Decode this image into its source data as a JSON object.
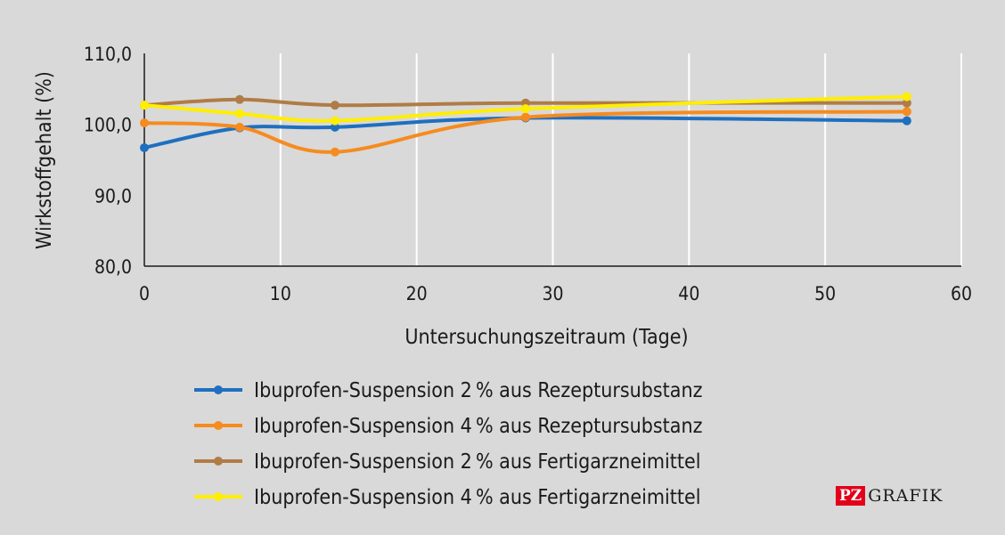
{
  "chart_data": {
    "type": "line",
    "xlabel": "Untersuchungszeitraum (Tage)",
    "ylabel": "Wirkstoffgehalt (%)",
    "xlim": [
      0,
      60
    ],
    "ylim": [
      80,
      110
    ],
    "xticks": [
      "0",
      "10",
      "20",
      "30",
      "40",
      "50",
      "60"
    ],
    "yticks": [
      "80,0",
      "90,0",
      "100,0",
      "110,0"
    ],
    "grid": "vertical",
    "legend": "bottom",
    "x": [
      0,
      7,
      14,
      28,
      56
    ],
    "series": [
      {
        "name": "Ibuprofen-Suspension 2 % aus Rezeptursubstanz",
        "color": "#1f6fbf",
        "values": [
          96.7,
          99.5,
          99.6,
          100.9,
          100.5
        ]
      },
      {
        "name": "Ibuprofen-Suspension 4 % aus Rezeptursubstanz",
        "color": "#f68b1f",
        "values": [
          100.2,
          99.6,
          96.1,
          101.0,
          101.8
        ]
      },
      {
        "name": "Ibuprofen-Suspension 2 % aus Fertigarzneimittel",
        "color": "#b07c46",
        "values": [
          102.7,
          103.5,
          102.7,
          103.0,
          103.0
        ]
      },
      {
        "name": "Ibuprofen-Suspension 4 % aus Fertigarzneimittel",
        "color": "#ffee00",
        "values": [
          102.7,
          101.5,
          100.5,
          102.2,
          103.9
        ]
      }
    ]
  },
  "logo": {
    "pz": "PZ",
    "grafik": "GRAFIK"
  }
}
